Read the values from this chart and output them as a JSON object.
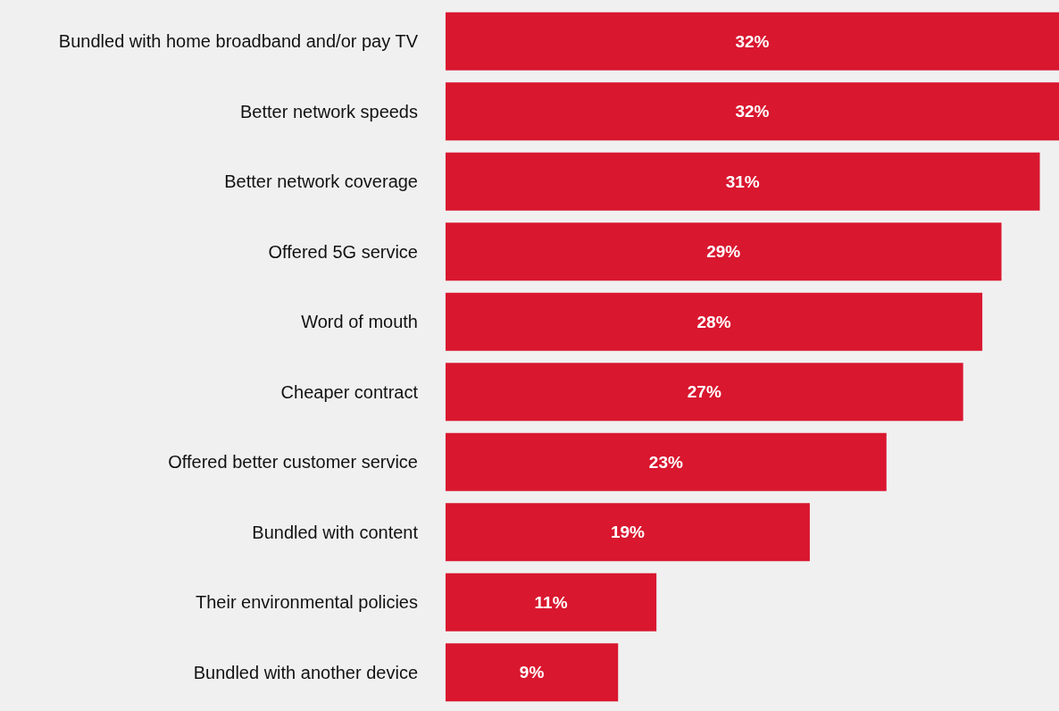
{
  "chart_data": {
    "type": "bar",
    "orientation": "horizontal",
    "categories": [
      "Bundled with home broadband and/or pay TV",
      "Better network speeds",
      "Better network coverage",
      "Offered 5G service",
      "Word of mouth",
      "Cheaper contract",
      "Offered better customer service",
      "Bundled with content",
      "Their environmental policies",
      "Bundled with another device"
    ],
    "values": [
      32,
      32,
      31,
      29,
      28,
      27,
      23,
      19,
      11,
      9
    ],
    "value_labels": [
      "32%",
      "32%",
      "31%",
      "29%",
      "28%",
      "27%",
      "23%",
      "19%",
      "11%",
      "9%"
    ],
    "color": "#d9172f"
  }
}
